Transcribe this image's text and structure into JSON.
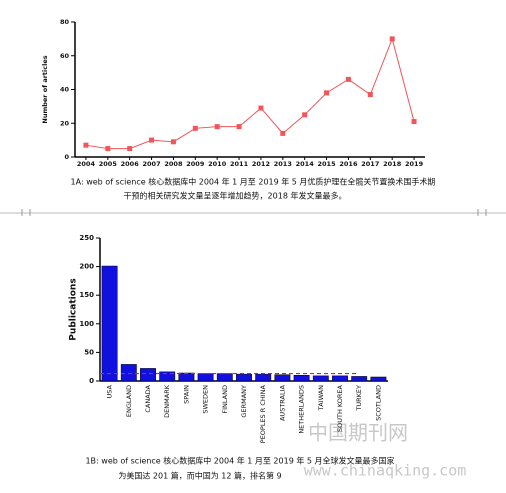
{
  "chart_data": [
    {
      "type": "line",
      "ylabel": "Number of articles",
      "categories": [
        "2004",
        "2005",
        "2006",
        "2007",
        "2008",
        "2009",
        "2010",
        "2011",
        "2012",
        "2013",
        "2014",
        "2015",
        "2016",
        "2017",
        "2018",
        "2019"
      ],
      "values": [
        7,
        5,
        5,
        10,
        9,
        17,
        18,
        18,
        29,
        14,
        25,
        38,
        46,
        37,
        70,
        21
      ],
      "color": "#f0555a",
      "ylim": [
        0,
        80
      ],
      "yticks": [
        0,
        20,
        40,
        60,
        80
      ],
      "caption": [
        "1A: web of science 核心数据库中 2004 年 1 月至 2019 年 5 月优质护理在全髋关节置换术围手术期",
        "干预的相关研究发文量呈逐年增加趋势，2018 年发文量最多。"
      ]
    },
    {
      "type": "bar",
      "ylabel": "Publications",
      "categories": [
        "USA",
        "ENGLAND",
        "CANADA",
        "DENMARK",
        "SPAIN",
        "SWEDEN",
        "FINLAND",
        "GERMANY",
        "PEOPLES R CHINA",
        "AUSTRALIA",
        "NETHERLANDS",
        "TAIWAN",
        "SOUTH KOREA",
        "TURKEY",
        "SCOTLAND"
      ],
      "values": [
        201,
        29,
        22,
        16,
        14,
        13,
        13,
        12,
        12,
        11,
        10,
        9,
        9,
        8,
        7
      ],
      "color": "#1010e0",
      "reference_line": 13,
      "reference_color": "#e02020",
      "ylim": [
        0,
        250
      ],
      "yticks": [
        0,
        50,
        100,
        150,
        200,
        250
      ],
      "caption": [
        "1B: web of science 核心数据库中 2004 年 1 月至 2019 年 5 月全球发文量最多国家",
        "为美国达 201 篇，而中国为 12 篇，排名第 9"
      ]
    }
  ],
  "watermark": [
    "中国期刊网",
    "www.chinaqking.com"
  ]
}
